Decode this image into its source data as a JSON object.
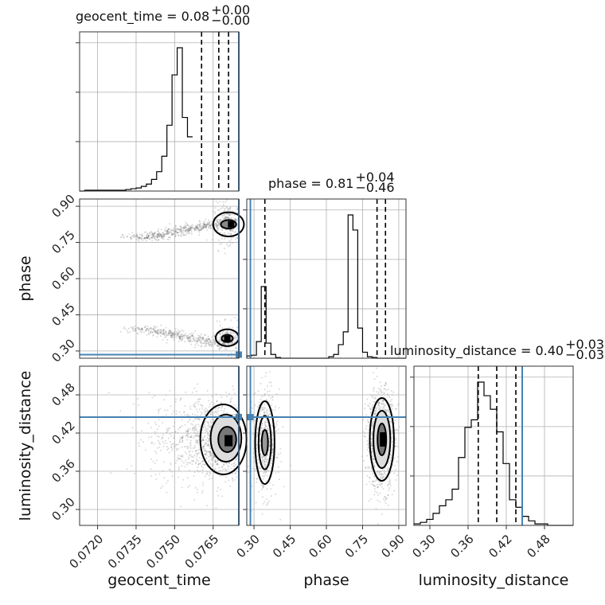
{
  "chart_data": {
    "type": "corner",
    "parameters": [
      {
        "name": "geocent_time",
        "title": "geocent_time = 0.08",
        "title_sup": "+0.00",
        "title_sub": "−0.00",
        "xlabel": "geocent_time",
        "ticks": [
          "0.0720",
          "0.0735",
          "0.0750",
          "0.0765"
        ],
        "tick_values": [
          0.072,
          0.0735,
          0.075,
          0.0765
        ],
        "range": [
          0.0713,
          0.0775
        ],
        "truth": 0.0775,
        "quantiles": [
          0.07605,
          0.07672,
          0.0771
        ],
        "hist_edges_start": 0.0713,
        "hist_bin_width": 0.0002,
        "hist_counts": [
          0,
          1,
          1,
          1,
          1,
          1,
          1,
          1,
          1,
          2,
          3,
          4,
          6,
          9,
          15,
          25,
          45,
          85,
          150,
          185,
          95,
          70
        ]
      },
      {
        "name": "phase",
        "title": "phase = 0.81",
        "title_sup": "+0.04",
        "title_sub": "−0.46",
        "ylabel": "phase",
        "xlabel": "phase",
        "ticks": [
          "0.30",
          "0.45",
          "0.60",
          "0.75",
          "0.90"
        ],
        "tick_values": [
          0.3,
          0.45,
          0.6,
          0.75,
          0.9
        ],
        "range": [
          0.27,
          0.93
        ],
        "truth": 0.285,
        "quantiles": [
          0.345,
          0.81,
          0.845
        ],
        "hist_edges_start": 0.27,
        "hist_bin_width": 0.02,
        "hist_counts": [
          3,
          4,
          22,
          95,
          20,
          5,
          1,
          0,
          0,
          0,
          0,
          0,
          0,
          0,
          0,
          0,
          0,
          2,
          5,
          18,
          35,
          190,
          170,
          40,
          8,
          2,
          1,
          0,
          0,
          0,
          0,
          0,
          0
        ]
      },
      {
        "name": "luminosity_distance",
        "title": "luminosity_distance = 0.40",
        "title_sup": "+0.03",
        "title_sub": "−0.03",
        "ylabel": "luminosity_distance",
        "xlabel": "luminosity_distance",
        "ticks": [
          "0.30",
          "0.36",
          "0.42",
          "0.48"
        ],
        "tick_values": [
          0.3,
          0.36,
          0.42,
          0.48
        ],
        "range": [
          0.275,
          0.525
        ],
        "truth": 0.445,
        "quantiles": [
          0.376,
          0.405,
          0.435
        ],
        "hist_edges_start": 0.275,
        "hist_bin_width": 0.01,
        "hist_counts": [
          1,
          2,
          4,
          8,
          13,
          17,
          24,
          45,
          65,
          70,
          95,
          86,
          77,
          62,
          41,
          17,
          12,
          6,
          3,
          1,
          1,
          0,
          0,
          0,
          0
        ]
      }
    ],
    "contour_levels": 3,
    "grid": true,
    "truth_color": "#4682b4",
    "line_color": "#000000"
  }
}
